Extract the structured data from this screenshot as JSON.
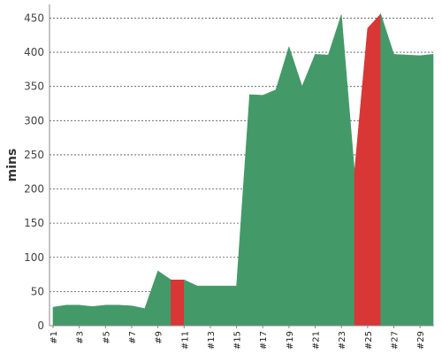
{
  "chart_data": {
    "type": "area",
    "ylabel": "mins",
    "xlabel": "",
    "ylim": [
      0,
      470
    ],
    "yticks": [
      0,
      50,
      100,
      150,
      200,
      250,
      300,
      350,
      400,
      450
    ],
    "x_tick_labels": [
      "#1",
      "#3",
      "#5",
      "#7",
      "#9",
      "#11",
      "#13",
      "#15",
      "#17",
      "#19",
      "#21",
      "#23",
      "#25",
      "#27",
      "#29"
    ],
    "x": [
      1,
      2,
      3,
      4,
      5,
      6,
      7,
      8,
      9,
      10,
      11,
      12,
      13,
      14,
      15,
      16,
      17,
      18,
      19,
      20,
      21,
      22,
      23,
      24,
      25,
      26,
      27,
      28,
      29,
      30
    ],
    "values": [
      27,
      30,
      30,
      28,
      30,
      30,
      29,
      25,
      80,
      67,
      67,
      58,
      58,
      58,
      58,
      338,
      337,
      345,
      408,
      350,
      397,
      396,
      455,
      225,
      435,
      456,
      397,
      396,
      395,
      397
    ],
    "colors": {
      "normal": "#439a68",
      "highlight": "#d93636"
    },
    "highlight_ranges": [
      [
        10,
        11
      ],
      [
        24,
        26
      ]
    ],
    "grid": true
  }
}
